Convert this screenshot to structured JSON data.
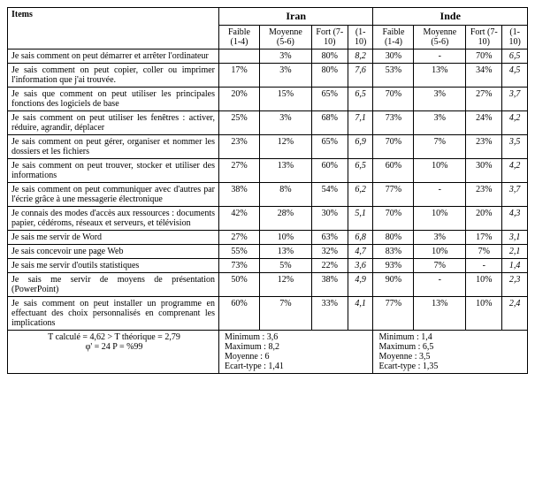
{
  "header": {
    "items": "Items",
    "iran": "Iran",
    "inde": "Inde"
  },
  "subheader": {
    "faible": "Faible (1-4)",
    "moyenne": "Moyenne (5-6)",
    "fort": "Fort (7-10)",
    "mean": "(1-10)"
  },
  "rows": {
    "r1": {
      "item": "Je sais  comment on peut  démarrer et arrêter l'ordinateur",
      "i_f": "",
      "i_m": "3%",
      "i_fo": "80%",
      "i_mean": "8,2",
      "d_f": "30%",
      "d_m": "-",
      "d_fo": "70%",
      "d_mean": "6,5"
    },
    "r2": {
      "item": "Je sais comment on peut copier, coller ou imprimer l'information que j'ai trouvée.",
      "i_f": "17%",
      "i_m": "3%",
      "i_fo": "80%",
      "i_mean": "7,6",
      "d_f": "53%",
      "d_m": "13%",
      "d_fo": "34%",
      "d_mean": "4,5"
    },
    "r3": {
      "item": "Je sais que comment on peut utiliser les principales fonctions des logiciels de base",
      "i_f": "20%",
      "i_m": "15%",
      "i_fo": "65%",
      "i_mean": "6,5",
      "d_f": "70%",
      "d_m": "3%",
      "d_fo": "27%",
      "d_mean": "3,7"
    },
    "r4": {
      "item": "Je sais comment on peut utiliser les fenêtres : activer, réduire, agrandir, déplacer",
      "i_f": "25%",
      "i_m": "3%",
      "i_fo": "68%",
      "i_mean": "7,1",
      "d_f": "73%",
      "d_m": "3%",
      "d_fo": "24%",
      "d_mean": "4,2"
    },
    "r5": {
      "item": "Je sais comment on peut gérer, organiser et nommer les dossiers et les fichiers",
      "i_f": "23%",
      "i_m": "12%",
      "i_fo": "65%",
      "i_mean": "6,9",
      "d_f": "70%",
      "d_m": "7%",
      "d_fo": "23%",
      "d_mean": "3,5"
    },
    "r6": {
      "item": "Je sais comment on peut trouver, stocker et utiliser des informations",
      "i_f": "27%",
      "i_m": "13%",
      "i_fo": "60%",
      "i_mean": "6,5",
      "d_f": "60%",
      "d_m": "10%",
      "d_fo": "30%",
      "d_mean": "4,2"
    },
    "r7": {
      "item": "Je sais  comment on peut communiquer avec d'autres par l'écrie grâce à une messagerie électronique",
      "i_f": "38%",
      "i_m": "8%",
      "i_fo": "54%",
      "i_mean": "6,2",
      "d_f": "77%",
      "d_m": "-",
      "d_fo": "23%",
      "d_mean": "3,7"
    },
    "r8": {
      "item": "Je connais des modes d'accès aux ressources : documents papier, cédéroms, réseaux et serveurs, et télévision",
      "i_f": "42%",
      "i_m": "28%",
      "i_fo": "30%",
      "i_mean": "5,1",
      "d_f": "70%",
      "d_m": "10%",
      "d_fo": "20%",
      "d_mean": "4,3"
    },
    "r9": {
      "item": "Je sais me servir de Word",
      "i_f": "27%",
      "i_m": "10%",
      "i_fo": "63%",
      "i_mean": "6,8",
      "d_f": "80%",
      "d_m": "3%",
      "d_fo": "17%",
      "d_mean": "3,1"
    },
    "r10": {
      "item": "Je sais concevoir une page Web",
      "i_f": "55%",
      "i_m": "13%",
      "i_fo": "32%",
      "i_mean": "4,7",
      "d_f": "83%",
      "d_m": "10%",
      "d_fo": "7%",
      "d_mean": "2,1"
    },
    "r11": {
      "item": "Je sais me servir d'outils  statistiques",
      "i_f": "73%",
      "i_m": "5%",
      "i_fo": "22%",
      "i_mean": "3,6",
      "d_f": "93%",
      "d_m": "7%",
      "d_fo": "-",
      "d_mean": "1,4"
    },
    "r12": {
      "item": "Je sais me servir de moyens de présentation (PowerPoint)",
      "i_f": "50%",
      "i_m": "12%",
      "i_fo": "38%",
      "i_mean": "4,9",
      "d_f": "90%",
      "d_m": "-",
      "d_fo": "10%",
      "d_mean": "2,3"
    },
    "r13": {
      "item": "Je sais  comment on peut installer un programme en effectuant des choix personnalisés  en comprenant les implications",
      "i_f": "60%",
      "i_m": "7%",
      "i_fo": "33%",
      "i_mean": "4,1",
      "d_f": "77%",
      "d_m": "13%",
      "d_fo": "10%",
      "d_mean": "2,4"
    }
  },
  "stats": {
    "left": {
      "tcalc": "T calculé = 4,62 > T théorique = 2,79",
      "df_p": "φ' =  24          P = %99"
    },
    "iran": {
      "min": "Minimum : 3,6",
      "max": "Maximum : 8,2",
      "moy": "Moyenne : 6",
      "ecart": "Ecart-type : 1,41"
    },
    "inde": {
      "min": "Minimum : 1,4",
      "max": "Maximum : 6,5",
      "moy": "Moyenne : 3,5",
      "ecart": "Ecart-type : 1,35"
    }
  },
  "style": {
    "background": "#ffffff",
    "border": "#000000",
    "font": "Times New Roman",
    "base_fontsize": 11
  }
}
